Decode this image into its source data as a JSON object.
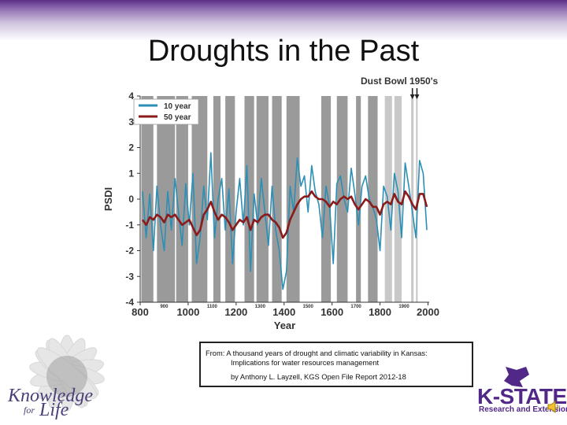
{
  "slide": {
    "title": "Droughts in the Past",
    "citation": {
      "line1": "From: A thousand years of drought and climatic variability in Kansas:",
      "line2": "Implications for water resources management",
      "line3": "by Anthony L. Layzell,  KGS Open File Report 2012-18"
    },
    "branding": {
      "knowledge": "Knowledge",
      "for": "for",
      "life": "Life",
      "kstate": "K-STATE",
      "kstate_sub": "Research and Extension",
      "color_purple": "#512888"
    }
  },
  "chart_data": {
    "type": "line",
    "annotation": "Dust Bowl 1950's",
    "xlabel": "Year",
    "ylabel": "PSDI",
    "xlim": [
      800,
      2005
    ],
    "ylim": [
      -4,
      4
    ],
    "x_ticks": [
      800,
      1000,
      1200,
      1400,
      1600,
      1800,
      2000
    ],
    "x_minor_ticks": [
      900,
      1100,
      1300,
      1500,
      1700,
      1900
    ],
    "y_ticks": [
      4,
      3,
      2,
      1,
      0,
      -1,
      -2,
      -3,
      -4
    ],
    "legend": {
      "position": "top-left",
      "entries": [
        "10 year",
        "50 year"
      ]
    },
    "series_colors": {
      "10 year": "#2c8fb5",
      "50 year": "#8b1a1a"
    },
    "drought_periods": [
      [
        805,
        855
      ],
      [
        870,
        945
      ],
      [
        950,
        1000
      ],
      [
        1015,
        1080
      ],
      [
        1105,
        1135
      ],
      [
        1155,
        1195
      ],
      [
        1235,
        1275
      ],
      [
        1285,
        1335
      ],
      [
        1350,
        1390
      ],
      [
        1410,
        1465
      ],
      [
        1555,
        1595
      ],
      [
        1620,
        1665
      ],
      [
        1700,
        1720
      ],
      [
        1750,
        1790
      ],
      [
        1820,
        1850
      ],
      [
        1860,
        1890
      ],
      [
        1930,
        1940
      ],
      [
        1950,
        1957
      ]
    ],
    "series": [
      {
        "name": "10 year",
        "x": [
          810,
          825,
          840,
          855,
          870,
          885,
          900,
          915,
          930,
          945,
          960,
          975,
          990,
          1005,
          1020,
          1035,
          1050,
          1065,
          1080,
          1095,
          1110,
          1125,
          1140,
          1155,
          1170,
          1185,
          1200,
          1215,
          1230,
          1245,
          1260,
          1275,
          1290,
          1305,
          1320,
          1335,
          1350,
          1365,
          1380,
          1395,
          1410,
          1425,
          1440,
          1455,
          1470,
          1485,
          1500,
          1515,
          1530,
          1545,
          1560,
          1575,
          1590,
          1605,
          1620,
          1635,
          1650,
          1665,
          1680,
          1695,
          1710,
          1725,
          1740,
          1755,
          1770,
          1785,
          1800,
          1815,
          1830,
          1845,
          1860,
          1875,
          1890,
          1905,
          1920,
          1935,
          1950,
          1965,
          1980,
          1995
        ],
        "values": [
          0.3,
          -1.5,
          0.2,
          -2.0,
          0.5,
          -1.0,
          -2.0,
          0.3,
          -1.2,
          0.8,
          -0.5,
          -1.8,
          0.6,
          -1.0,
          1.0,
          -2.5,
          -1.5,
          0.5,
          -0.8,
          1.8,
          -1.5,
          0.0,
          0.8,
          -1.2,
          0.4,
          -2.5,
          -0.5,
          0.8,
          -1.0,
          1.3,
          -2.8,
          0.2,
          -1.0,
          0.8,
          -0.5,
          -1.8,
          0.5,
          -1.2,
          -2.0,
          -3.5,
          -2.8,
          0.5,
          -0.5,
          1.6,
          0.5,
          0.9,
          -0.5,
          1.3,
          0.3,
          -0.2,
          -1.5,
          0.5,
          -0.3,
          -2.5,
          0.6,
          0.9,
          0.0,
          -0.5,
          1.2,
          0.2,
          -1.0,
          0.5,
          0.9,
          0.0,
          -0.3,
          -0.8,
          -2.0,
          0.5,
          0.1,
          -1.2,
          1.0,
          0.3,
          -1.5,
          1.4,
          0.5,
          -0.5,
          -1.5,
          1.5,
          1.0,
          -1.2
        ]
      },
      {
        "name": "50 year",
        "x": [
          810,
          825,
          840,
          855,
          870,
          885,
          900,
          915,
          930,
          945,
          960,
          975,
          990,
          1005,
          1020,
          1035,
          1050,
          1065,
          1080,
          1095,
          1110,
          1125,
          1140,
          1155,
          1170,
          1185,
          1200,
          1215,
          1230,
          1245,
          1260,
          1275,
          1290,
          1305,
          1320,
          1335,
          1350,
          1365,
          1380,
          1395,
          1410,
          1425,
          1440,
          1455,
          1470,
          1485,
          1500,
          1515,
          1530,
          1545,
          1560,
          1575,
          1590,
          1605,
          1620,
          1635,
          1650,
          1665,
          1680,
          1695,
          1710,
          1725,
          1740,
          1755,
          1770,
          1785,
          1800,
          1815,
          1830,
          1845,
          1860,
          1875,
          1890,
          1905,
          1920,
          1935,
          1950,
          1965,
          1980,
          1995
        ],
        "values": [
          -0.8,
          -1.0,
          -0.7,
          -0.8,
          -0.6,
          -0.7,
          -0.9,
          -0.6,
          -0.7,
          -0.6,
          -0.8,
          -1.0,
          -0.9,
          -0.8,
          -1.1,
          -1.4,
          -1.2,
          -0.6,
          -0.4,
          -0.1,
          -0.5,
          -0.8,
          -0.6,
          -0.7,
          -0.9,
          -1.2,
          -1.0,
          -0.8,
          -0.9,
          -0.7,
          -1.2,
          -0.8,
          -0.9,
          -0.7,
          -0.6,
          -0.6,
          -0.8,
          -0.9,
          -1.1,
          -1.5,
          -1.3,
          -0.8,
          -0.5,
          -0.2,
          0.0,
          0.1,
          0.1,
          0.3,
          0.1,
          0.0,
          0.0,
          -0.1,
          -0.3,
          -0.1,
          -0.2,
          0.0,
          0.1,
          0.0,
          0.1,
          -0.2,
          -0.4,
          -0.2,
          0.0,
          -0.1,
          -0.3,
          -0.3,
          -0.6,
          -0.2,
          -0.1,
          -0.2,
          0.2,
          -0.1,
          -0.2,
          0.3,
          0.1,
          -0.2,
          -0.4,
          0.2,
          0.2,
          -0.3
        ]
      }
    ]
  }
}
